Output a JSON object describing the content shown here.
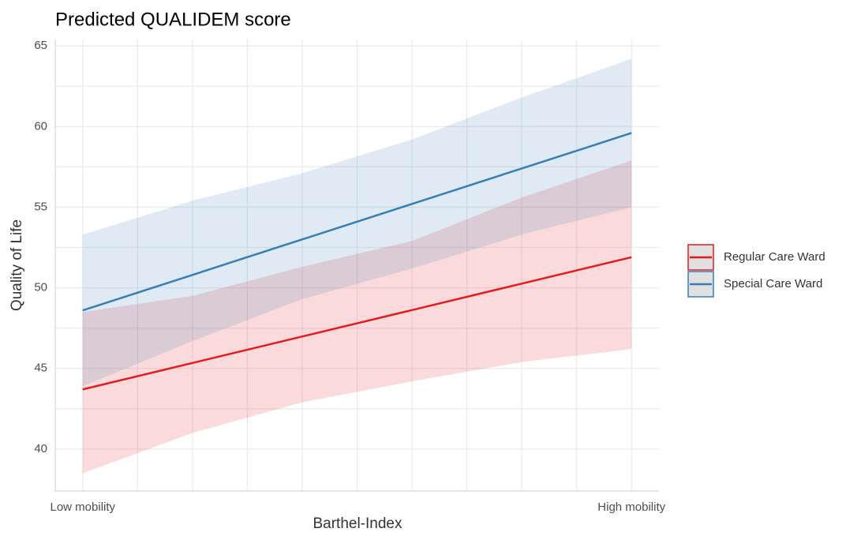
{
  "chart_data": {
    "type": "line",
    "title": "Predicted QUALIDEM score",
    "xlabel": "Barthel-Index",
    "ylabel": "Quality of Life",
    "x": [
      0,
      2,
      4,
      6,
      8,
      10
    ],
    "xlim": [
      -0.5,
      10.5
    ],
    "xticks": [
      {
        "value": 0,
        "label": "Low mobility"
      },
      {
        "value": 10,
        "label": "High mobility"
      }
    ],
    "xgrid": [
      0,
      1,
      2,
      3,
      4,
      5,
      6,
      7,
      8,
      9,
      10
    ],
    "ylim": [
      37.4,
      65.4
    ],
    "yticks": [
      40,
      45,
      50,
      55,
      60,
      65
    ],
    "ygrid": [
      40,
      42.5,
      45,
      47.5,
      50,
      52.5,
      55,
      57.5,
      60,
      62.5,
      65
    ],
    "grid": true,
    "legend": "right",
    "series": [
      {
        "name": "Regular Care Ward",
        "color": "#e41a1c",
        "values": [
          43.7,
          45.34,
          46.98,
          48.62,
          50.26,
          51.9
        ],
        "lower": [
          38.5,
          41.0,
          42.9,
          44.2,
          45.4,
          46.2
        ],
        "upper": [
          48.5,
          49.5,
          51.3,
          52.9,
          55.6,
          57.9
        ]
      },
      {
        "name": "Special Care Ward",
        "color": "#377eb8",
        "values": [
          48.6,
          50.8,
          53.0,
          55.2,
          57.4,
          59.6
        ],
        "lower": [
          43.9,
          46.7,
          49.3,
          51.2,
          53.3,
          55.0
        ],
        "upper": [
          53.3,
          55.4,
          57.1,
          59.2,
          61.8,
          64.2
        ]
      }
    ]
  }
}
